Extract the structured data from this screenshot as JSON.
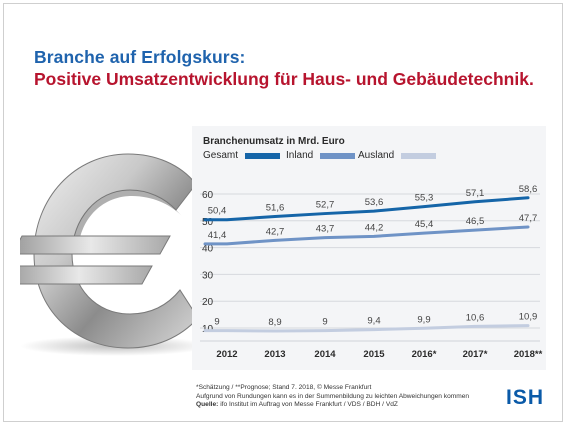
{
  "title": {
    "line1": "Branche auf Erfolgskurs:",
    "line2": "Positive Umsatzentwicklung für Haus- und Gebäudetechnik."
  },
  "chart_data": {
    "type": "line",
    "title": "Branchenumsatz in Mrd. Euro",
    "categories": [
      "2012",
      "2013",
      "2014",
      "2015",
      "2016*",
      "2017*",
      "2018**"
    ],
    "series": [
      {
        "name": "Gesamt",
        "color": "#1565a8",
        "values": [
          50.4,
          51.6,
          52.7,
          53.6,
          55.3,
          57.1,
          58.6
        ],
        "labels": [
          "50,4",
          "51,6",
          "52,7",
          "53,6",
          "55,3",
          "57,1",
          "58,6"
        ]
      },
      {
        "name": "Inland",
        "color": "#6f93c6",
        "values": [
          41.4,
          42.7,
          43.7,
          44.2,
          45.4,
          46.5,
          47.7
        ],
        "labels": [
          "41,4",
          "42,7",
          "43,7",
          "44,2",
          "45,4",
          "46,5",
          "47,7"
        ]
      },
      {
        "name": "Ausland",
        "color": "#c3cde0",
        "values": [
          9,
          8.9,
          9,
          9.4,
          9.9,
          10.6,
          10.9
        ],
        "labels": [
          "9",
          "8,9",
          "9",
          "9,4",
          "9,9",
          "10,6",
          "10,9"
        ]
      }
    ],
    "yticks": [
      "60",
      "50",
      "40",
      "30",
      "20",
      "10"
    ],
    "ylim": [
      5,
      63
    ],
    "grid": true,
    "legend": "top"
  },
  "footer": {
    "line1": "*Schätzung / **Prognose; Stand 7. 2018, © Messe Frankfurt",
    "line2": "Aufgrund von Rundungen kann es in der Summenbildung zu leichten Abweichungen kommen",
    "source_label": "Quelle:",
    "source": " ifo Institut im Auftrag von Messe Frankfurt / VDS / BDH / VdZ"
  },
  "logo": "ISH",
  "euro_icon": "euro-sign"
}
